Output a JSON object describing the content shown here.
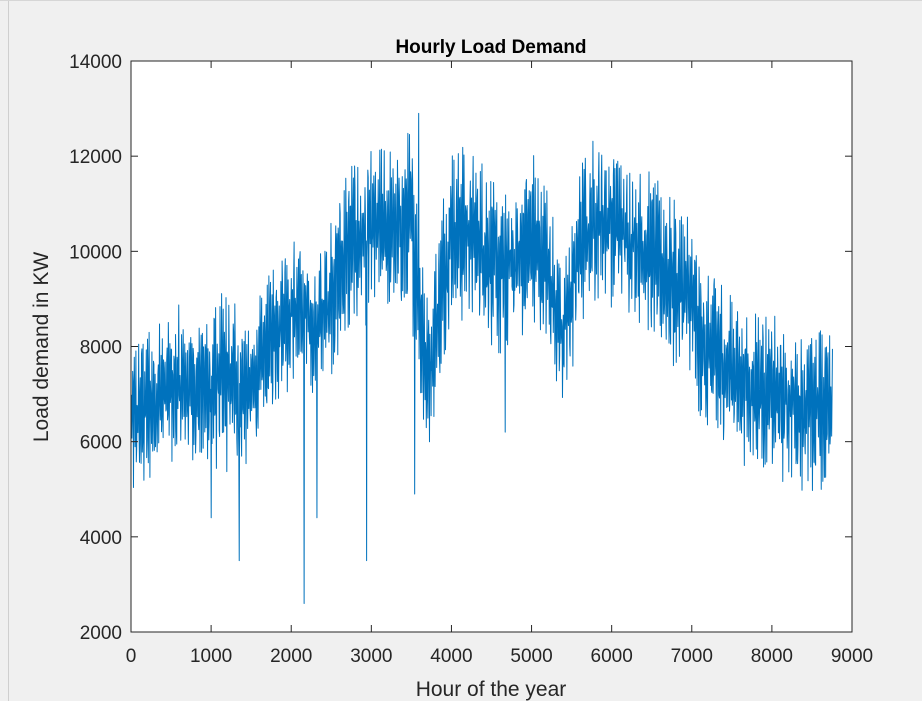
{
  "chart_data": {
    "type": "line",
    "title": "Hourly Load Demand",
    "xlabel": "Hour of the year",
    "ylabel": "Load demand in KW",
    "xlim": [
      0,
      9000
    ],
    "ylim": [
      2000,
      14000
    ],
    "xticks": [
      0,
      1000,
      2000,
      3000,
      4000,
      5000,
      6000,
      7000,
      8000,
      9000
    ],
    "yticks": [
      2000,
      4000,
      6000,
      8000,
      10000,
      12000,
      14000
    ],
    "grid": false,
    "legend": "none",
    "series": [
      {
        "color": "#0072bd",
        "x_start": 1,
        "x_end": 8760,
        "profile_x": [
          0,
          200,
          400,
          600,
          800,
          1000,
          1200,
          1350,
          1500,
          1700,
          1900,
          2100,
          2300,
          2500,
          2700,
          2900,
          3100,
          3300,
          3500,
          3700,
          3800,
          4000,
          4200,
          4400,
          4600,
          4800,
          5000,
          5200,
          5400,
          5600,
          5800,
          6000,
          6200,
          6400,
          6600,
          6800,
          7000,
          7100,
          7300,
          7500,
          7700,
          7900,
          8100,
          8300,
          8500,
          8760
        ],
        "profile_low": [
          4600,
          5000,
          5300,
          5400,
          5400,
          5400,
          5300,
          5100,
          5500,
          6400,
          6900,
          7000,
          6800,
          7400,
          8000,
          8400,
          8600,
          8600,
          8500,
          5400,
          6600,
          8400,
          8500,
          8200,
          7600,
          7800,
          8200,
          7800,
          6500,
          8200,
          8800,
          8800,
          8600,
          8400,
          7800,
          7400,
          7200,
          6000,
          5700,
          5600,
          5400,
          5300,
          5100,
          5000,
          4800,
          5000
        ],
        "profile_high": [
          8200,
          8500,
          8800,
          8900,
          8900,
          9000,
          9200,
          9300,
          8600,
          9500,
          10500,
          10600,
          9800,
          11000,
          12000,
          12200,
          12300,
          12200,
          12700,
          9200,
          10200,
          12500,
          12400,
          12000,
          11400,
          11800,
          12200,
          11500,
          9800,
          12000,
          12600,
          12500,
          12000,
          11800,
          11500,
          11200,
          10800,
          10100,
          9800,
          9400,
          9000,
          8800,
          8600,
          8600,
          8500,
          8700
        ],
        "spikes": [
          {
            "x": 1000,
            "y": 4400
          },
          {
            "x": 1350,
            "y": 3500
          },
          {
            "x": 2160,
            "y": 2600
          },
          {
            "x": 2320,
            "y": 4400
          },
          {
            "x": 2940,
            "y": 3500
          },
          {
            "x": 3540,
            "y": 4900
          },
          {
            "x": 3590,
            "y": 12900
          },
          {
            "x": 4670,
            "y": 6200
          }
        ]
      }
    ]
  }
}
